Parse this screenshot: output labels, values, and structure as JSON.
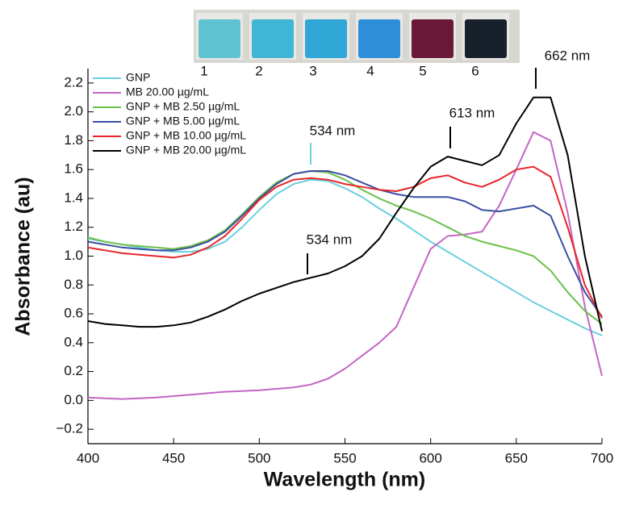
{
  "chart_data": {
    "type": "line",
    "x_label": "Wavelength (nm)",
    "y_label": "Absorbance (au)",
    "xlim": [
      400,
      700
    ],
    "ylim": [
      -0.3,
      2.3
    ],
    "xticks": [
      400,
      450,
      500,
      550,
      600,
      650,
      700
    ],
    "yticks": [
      {
        "value": -0.2,
        "label": "−0.2"
      },
      {
        "value": 0,
        "label": "0.0"
      },
      0.2,
      0.4,
      0.6,
      0.8,
      {
        "value": 1,
        "label": "1.0"
      },
      1.2,
      1.4,
      1.6,
      1.8,
      {
        "value": 2,
        "label": "2.0"
      },
      2.2
    ],
    "legend": "upper left",
    "x": [
      400,
      410,
      420,
      430,
      440,
      450,
      460,
      470,
      480,
      490,
      500,
      510,
      520,
      530,
      540,
      550,
      560,
      570,
      580,
      590,
      600,
      610,
      620,
      630,
      640,
      650,
      660,
      670,
      680,
      690,
      700
    ],
    "series": [
      {
        "name": "GNP",
        "color": "#6ccfe0",
        "values": [
          1.12,
          1.1,
          1.08,
          1.06,
          1.04,
          1.03,
          1.03,
          1.05,
          1.1,
          1.2,
          1.32,
          1.43,
          1.5,
          1.53,
          1.52,
          1.47,
          1.41,
          1.33,
          1.26,
          1.18,
          1.1,
          1.03,
          0.96,
          0.89,
          0.82,
          0.75,
          0.68,
          0.62,
          0.56,
          0.5,
          0.45
        ]
      },
      {
        "name": "MB 20.00 µg/mL",
        "color": "#c465c4",
        "values": [
          0.02,
          0.015,
          0.01,
          0.015,
          0.02,
          0.03,
          0.04,
          0.05,
          0.06,
          0.065,
          0.07,
          0.08,
          0.09,
          0.11,
          0.15,
          0.22,
          0.31,
          0.4,
          0.51,
          0.78,
          1.05,
          1.14,
          1.15,
          1.17,
          1.35,
          1.6,
          1.86,
          1.8,
          1.3,
          0.65,
          0.17
        ]
      },
      {
        "name": "GNP + MB 2.50 µg/mL",
        "color": "#6cc04a",
        "values": [
          1.13,
          1.1,
          1.08,
          1.07,
          1.06,
          1.05,
          1.07,
          1.11,
          1.18,
          1.29,
          1.41,
          1.51,
          1.57,
          1.59,
          1.58,
          1.53,
          1.46,
          1.4,
          1.35,
          1.31,
          1.26,
          1.2,
          1.14,
          1.1,
          1.07,
          1.04,
          1.0,
          0.9,
          0.75,
          0.62,
          0.53
        ]
      },
      {
        "name": "GNP + MB 5.00 µg/mL",
        "color": "#3a4fa0",
        "values": [
          1.1,
          1.08,
          1.06,
          1.05,
          1.04,
          1.04,
          1.06,
          1.1,
          1.17,
          1.28,
          1.4,
          1.5,
          1.57,
          1.59,
          1.59,
          1.56,
          1.51,
          1.46,
          1.43,
          1.41,
          1.41,
          1.41,
          1.38,
          1.32,
          1.31,
          1.33,
          1.35,
          1.28,
          1.0,
          0.75,
          0.58
        ]
      },
      {
        "name": "GNP + MB 10.00 µg/mL",
        "color": "#e8262a",
        "values": [
          1.06,
          1.04,
          1.02,
          1.01,
          1.0,
          0.99,
          1.01,
          1.06,
          1.14,
          1.26,
          1.39,
          1.48,
          1.53,
          1.54,
          1.53,
          1.5,
          1.48,
          1.46,
          1.45,
          1.48,
          1.54,
          1.56,
          1.51,
          1.48,
          1.53,
          1.6,
          1.62,
          1.55,
          1.2,
          0.8,
          0.57
        ]
      },
      {
        "name": "GNP + MB 20.00 µg/mL",
        "color": "#000000",
        "values": [
          0.55,
          0.53,
          0.52,
          0.51,
          0.51,
          0.52,
          0.54,
          0.58,
          0.63,
          0.69,
          0.74,
          0.78,
          0.82,
          0.85,
          0.88,
          0.93,
          1.0,
          1.12,
          1.3,
          1.47,
          1.62,
          1.69,
          1.66,
          1.63,
          1.7,
          1.92,
          2.1,
          2.1,
          1.7,
          1.0,
          0.48
        ]
      }
    ],
    "annotations": [
      "534 nm",
      "534 nm",
      "613 nm",
      "662 nm"
    ],
    "vials": [
      "1",
      "2",
      "3",
      "4",
      "5",
      "6"
    ]
  }
}
